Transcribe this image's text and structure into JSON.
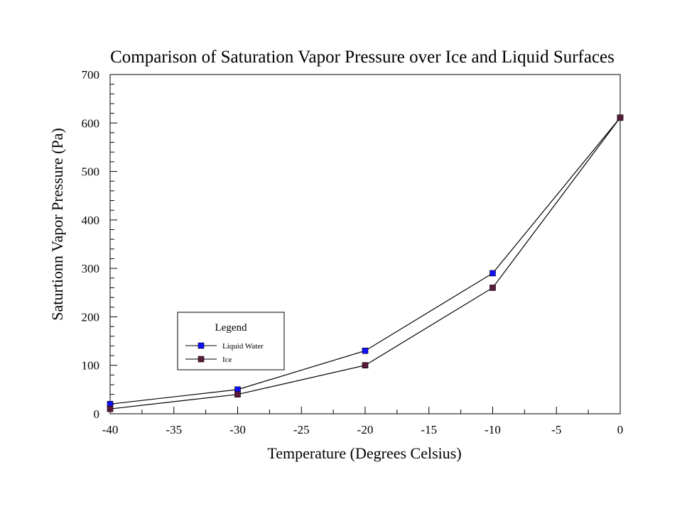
{
  "chart_data": {
    "type": "line",
    "title": "Comparison of Saturation Vapor Pressure over Ice and Liquid Surfaces",
    "xlabel": "Temperature (Degrees Celsius)",
    "ylabel": "Saturtionn Vapor Pressure (Pa)",
    "xlim": [
      -40,
      0
    ],
    "ylim": [
      0,
      700
    ],
    "x_ticks": [
      "-40",
      "-35",
      "-30",
      "-25",
      "-20",
      "-15",
      "-10",
      "-5",
      "0"
    ],
    "y_ticks": [
      "0",
      "100",
      "200",
      "300",
      "400",
      "500",
      "600",
      "700"
    ],
    "x": [
      -40,
      -30,
      -20,
      -10,
      0
    ],
    "series": [
      {
        "name": "Liquid Water",
        "values": [
          20,
          50,
          130,
          290,
          611
        ],
        "color": "#1010ff"
      },
      {
        "name": "Ice",
        "values": [
          10,
          40,
          100,
          260,
          611
        ],
        "color": "#5a1a3a"
      }
    ],
    "legend": {
      "title": "Legend",
      "placement": "lower-left"
    },
    "grid": false
  }
}
